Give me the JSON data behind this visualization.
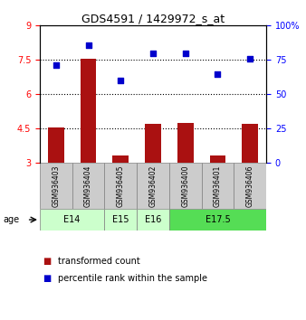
{
  "title": "GDS4591 / 1429972_s_at",
  "samples": [
    "GSM936403",
    "GSM936404",
    "GSM936405",
    "GSM936402",
    "GSM936400",
    "GSM936401",
    "GSM936406"
  ],
  "transformed_count": [
    4.55,
    7.55,
    3.35,
    4.7,
    4.75,
    3.35,
    4.7
  ],
  "percentile_rank": [
    71,
    86,
    60,
    80,
    80,
    65,
    76
  ],
  "age_groups": [
    {
      "label": "E14",
      "start": 0,
      "end": 1,
      "color": "#ccffcc"
    },
    {
      "label": "E15",
      "start": 2,
      "end": 2,
      "color": "#ccffcc"
    },
    {
      "label": "E16",
      "start": 3,
      "end": 3,
      "color": "#ccffcc"
    },
    {
      "label": "E17.5",
      "start": 4,
      "end": 6,
      "color": "#55dd55"
    }
  ],
  "age_group_sample_indices": [
    [
      0,
      1
    ],
    [
      2
    ],
    [
      3
    ],
    [
      4,
      5,
      6
    ]
  ],
  "bar_color": "#aa1111",
  "dot_color": "#0000cc",
  "left_ylim": [
    3,
    9
  ],
  "left_yticks": [
    3,
    4.5,
    6,
    7.5,
    9
  ],
  "left_ytick_labels": [
    "3",
    "4.5",
    "6",
    "7.5",
    "9"
  ],
  "right_ylim": [
    0,
    100
  ],
  "right_yticks": [
    0,
    25,
    50,
    75,
    100
  ],
  "right_ytick_labels": [
    "0",
    "25",
    "50",
    "75",
    "100%"
  ],
  "dotted_lines": [
    4.5,
    6.0,
    7.5
  ],
  "bar_baseline": 3.0,
  "bar_width": 0.5,
  "sample_box_color": "#cccccc",
  "legend_red_label": "transformed count",
  "legend_blue_label": "percentile rank within the sample",
  "age_label": "age"
}
